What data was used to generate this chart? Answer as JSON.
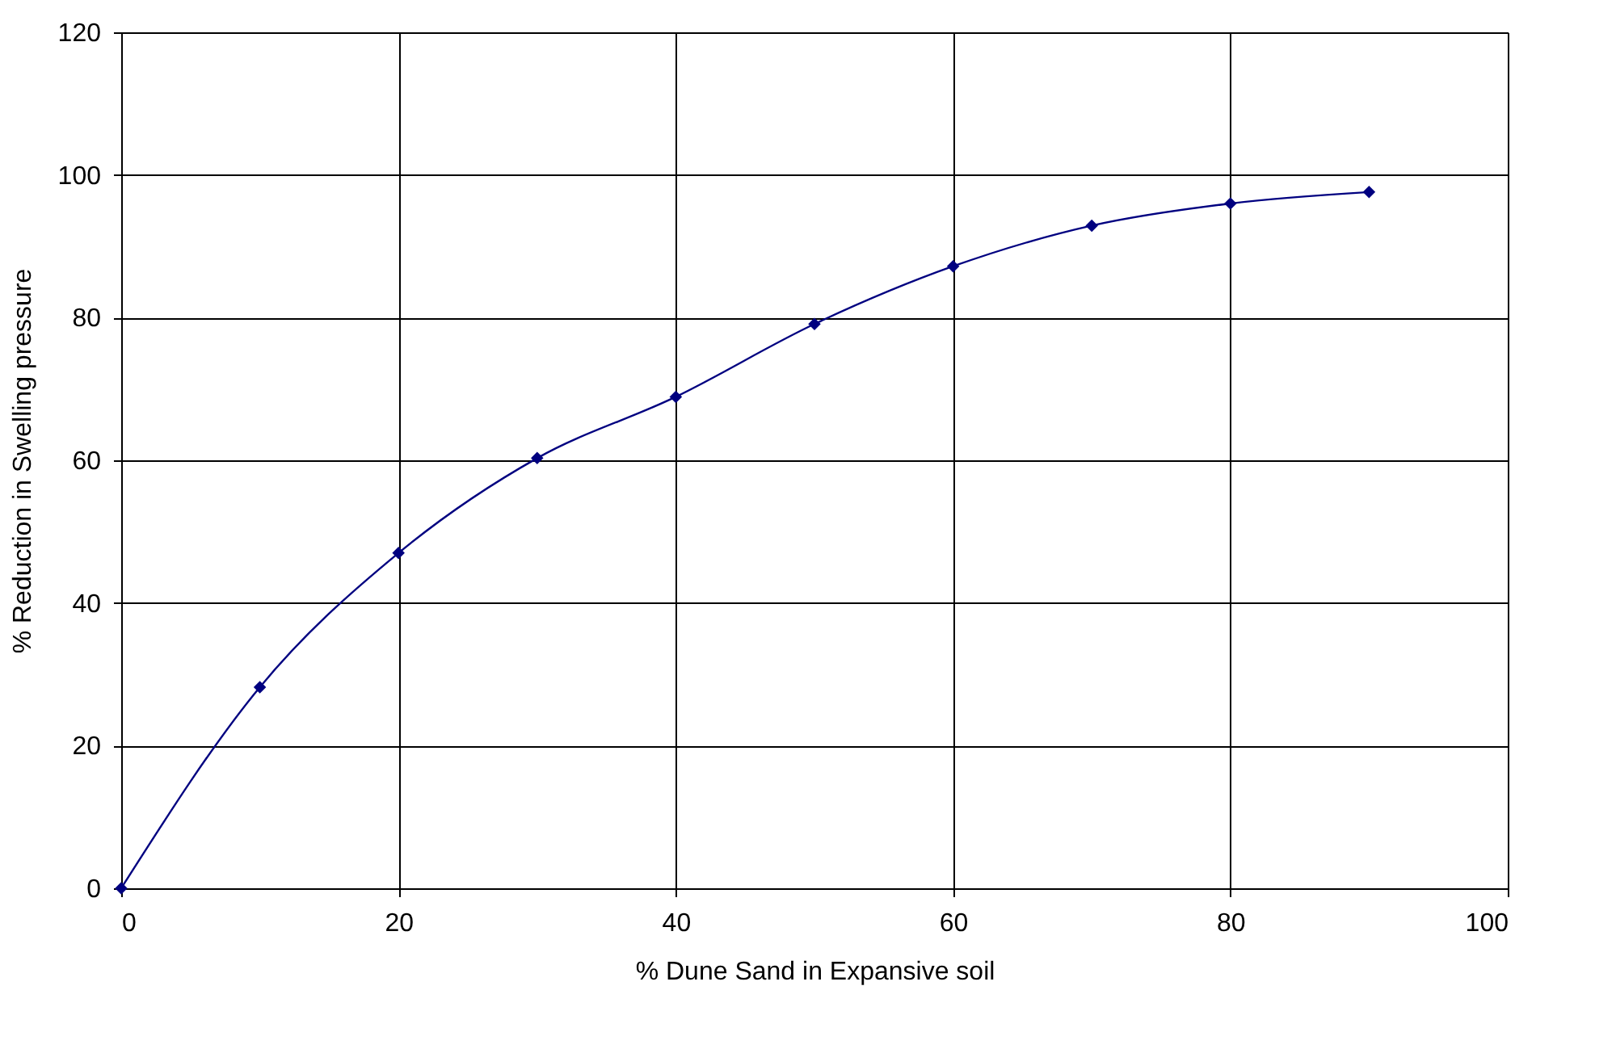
{
  "chart_data": {
    "type": "line",
    "xlabel": "% Dune Sand in Expansive soil",
    "ylabel": "% Reduction in Swelling pressure",
    "x": [
      0,
      10,
      20,
      30,
      40,
      50,
      60,
      70,
      80,
      90
    ],
    "series": [
      {
        "color": "#000080",
        "values": [
          0,
          28.2,
          47.0,
          60.3,
          68.9,
          79.1,
          87.2,
          92.9,
          96.0,
          97.6
        ]
      }
    ],
    "xlim": [
      0,
      100
    ],
    "xticks": [
      0,
      20,
      40,
      60,
      80,
      100
    ],
    "ylim": [
      0,
      120
    ],
    "yticks": [
      0,
      20,
      40,
      60,
      80,
      100,
      120
    ],
    "grid": true,
    "marker": "diamond",
    "line_style": "solid"
  }
}
